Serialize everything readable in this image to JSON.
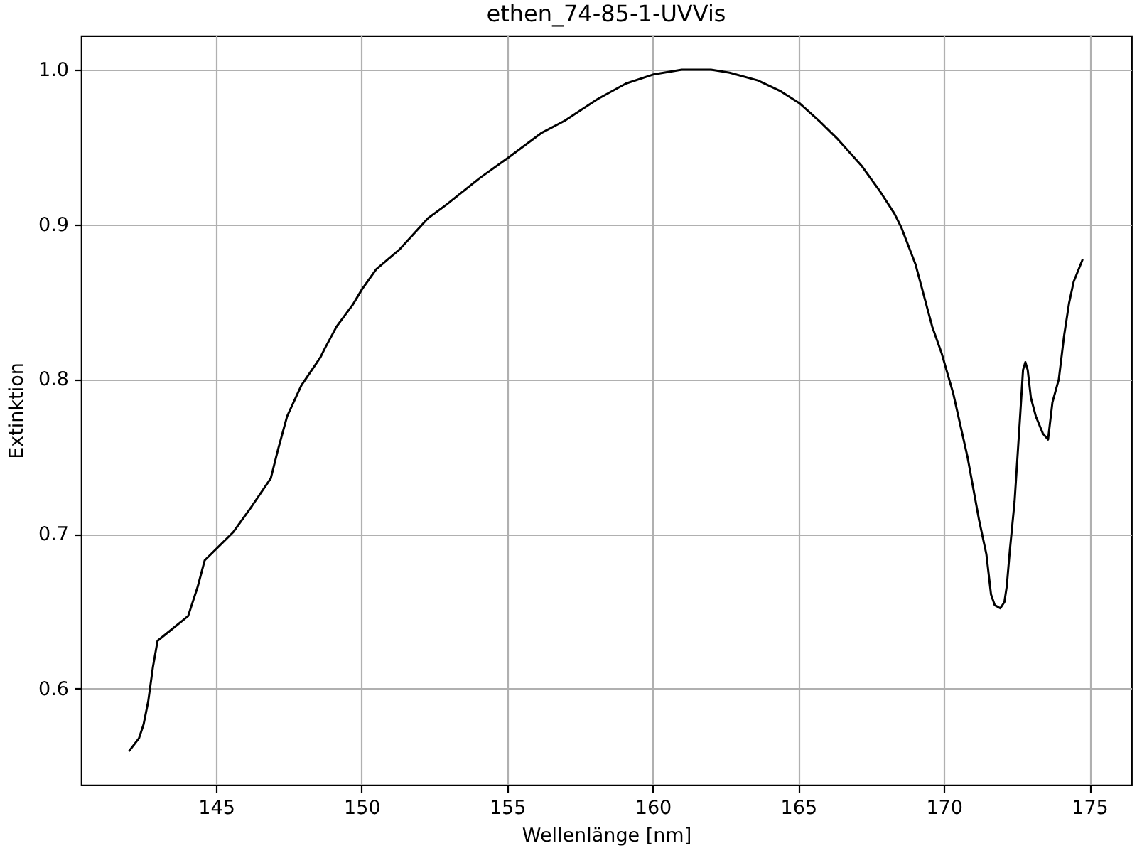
{
  "chart_data": {
    "type": "line",
    "title": "ethen_74-85-1-UVVis",
    "xlabel": "Wellenlänge [nm]",
    "ylabel": "Extinktion",
    "x": [
      142.02,
      142.35,
      142.51,
      142.67,
      142.83,
      142.99,
      144.04,
      144.37,
      144.61,
      145.58,
      146.23,
      146.88,
      147.12,
      147.44,
      147.93,
      148.58,
      148.74,
      149.14,
      149.69,
      150.01,
      150.5,
      151.31,
      152.28,
      152.93,
      154.06,
      155.03,
      156.17,
      156.98,
      158.11,
      159.08,
      160.05,
      161.0,
      161.5,
      162.0,
      162.64,
      163.61,
      164.4,
      165.06,
      165.71,
      166.36,
      167.17,
      167.82,
      168.3,
      168.54,
      169.03,
      169.6,
      169.92,
      170.32,
      170.81,
      171.21,
      171.46,
      171.62,
      171.75,
      171.94,
      172.08,
      172.16,
      172.27,
      172.43,
      172.62,
      172.72,
      172.8,
      172.88,
      172.99,
      173.16,
      173.4,
      173.58,
      173.73,
      173.95,
      174.13,
      174.3,
      174.46,
      174.76
    ],
    "series": [
      {
        "color": "#000000",
        "values": [
          0.56,
          0.568,
          0.577,
          0.592,
          0.614,
          0.631,
          0.647,
          0.666,
          0.683,
          0.701,
          0.718,
          0.736,
          0.754,
          0.776,
          0.796,
          0.814,
          0.82,
          0.834,
          0.848,
          0.858,
          0.871,
          0.884,
          0.904,
          0.913,
          0.93,
          0.943,
          0.959,
          0.967,
          0.981,
          0.991,
          0.997,
          1.0,
          1.0,
          1.0,
          0.998,
          0.993,
          0.986,
          0.978,
          0.967,
          0.955,
          0.938,
          0.921,
          0.907,
          0.898,
          0.874,
          0.834,
          0.817,
          0.791,
          0.75,
          0.709,
          0.687,
          0.661,
          0.654,
          0.652,
          0.656,
          0.666,
          0.69,
          0.721,
          0.776,
          0.806,
          0.811,
          0.806,
          0.788,
          0.776,
          0.765,
          0.761,
          0.785,
          0.8,
          0.828,
          0.849,
          0.863,
          0.877
        ]
      }
    ],
    "xlim": [
      140.36,
      176.44
    ],
    "ylim": [
      0.538,
      1.022
    ],
    "xticks": [
      145,
      150,
      155,
      160,
      165,
      170,
      175
    ],
    "yticks": [
      0.6,
      0.7,
      0.8,
      0.9,
      {
        "value": 1,
        "label": "1.0"
      }
    ],
    "grid": true,
    "marker": "none",
    "line_style": "solid"
  }
}
